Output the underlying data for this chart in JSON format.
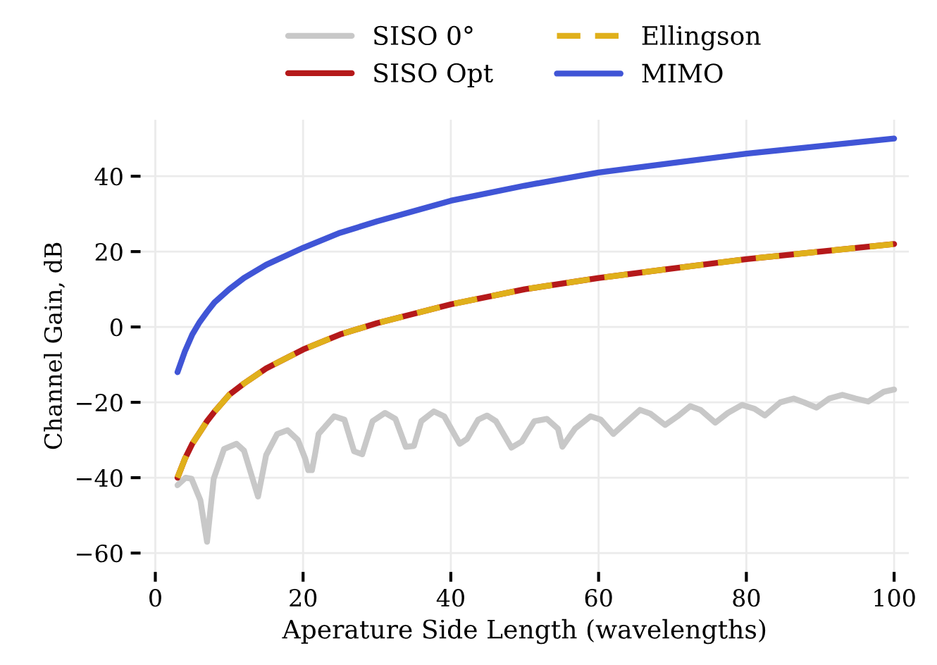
{
  "chart_data": {
    "type": "line",
    "xlabel": "Aperature Side Length (wavelengths)",
    "ylabel": "Channel Gain, dB",
    "xlim": [
      -2,
      102
    ],
    "ylim": [
      -65,
      55
    ],
    "xticks": [
      0,
      20,
      40,
      60,
      80,
      100
    ],
    "yticks": [
      -60,
      -40,
      -20,
      0,
      20,
      40
    ],
    "grid": true,
    "legend": "top",
    "marker": "none",
    "series": [
      {
        "name": "SISO 0°",
        "color": "#c8c8c8",
        "line_style": "solid",
        "x": [
          3,
          4.1,
          4.9,
          6.1,
          7,
          7.9,
          9.3,
          11,
          12,
          13.9,
          15,
          16.5,
          17.9,
          19.3,
          20.3,
          20.7,
          21.2,
          21.6,
          22.1,
          24.2,
          25.6,
          26.9,
          28,
          29.4,
          31.1,
          32.5,
          33.9,
          35,
          36,
          37.7,
          39.1,
          41.2,
          42.2,
          43.7,
          44.9,
          46.1,
          48.2,
          49.6,
          51.3,
          53,
          54.5,
          55.1,
          56.8,
          58.9,
          60.3,
          62,
          63.5,
          65.6,
          67,
          69,
          70.7,
          72.4,
          73.8,
          75.8,
          77.5,
          79.4,
          81.1,
          82.5,
          84.6,
          86.4,
          87.8,
          89.5,
          91.2,
          93,
          94.8,
          96.5,
          98.6,
          100
        ],
        "values": [
          -42,
          -40,
          -40.3,
          -46,
          -57,
          -40.3,
          -32.4,
          -31,
          -32.8,
          -45,
          -34,
          -28.4,
          -27.4,
          -30,
          -35,
          -38,
          -38,
          -34,
          -28.4,
          -23.7,
          -24.6,
          -33,
          -33.8,
          -25,
          -22.8,
          -24.4,
          -31.8,
          -31.6,
          -25,
          -22.4,
          -23.7,
          -31,
          -29.7,
          -24.6,
          -23.5,
          -25,
          -32,
          -30.4,
          -25,
          -24.4,
          -27,
          -31.8,
          -27,
          -23.7,
          -24.6,
          -28.4,
          -25.7,
          -22,
          -23,
          -26,
          -23.7,
          -21,
          -22,
          -25.4,
          -22.8,
          -20.7,
          -21.7,
          -23.5,
          -20,
          -19,
          -20,
          -21.4,
          -19,
          -18,
          -19,
          -19.8,
          -17.2,
          -16.6
        ]
      },
      {
        "name": "SISO Opt",
        "color": "#b5191a",
        "line_style": "solid",
        "x": [
          3,
          4,
          5,
          6,
          7,
          8,
          10,
          12,
          15,
          20,
          25,
          30,
          40,
          50,
          60,
          70,
          80,
          90,
          100
        ],
        "values": [
          -40,
          -35,
          -31,
          -28,
          -25,
          -22.5,
          -18,
          -15,
          -11,
          -6,
          -2,
          1,
          6,
          10,
          13,
          15.5,
          18,
          20,
          22
        ]
      },
      {
        "name": "Ellingson",
        "color": "#e0b01b",
        "line_style": "dashed",
        "x": [
          3,
          4,
          5,
          6,
          7,
          8,
          10,
          12,
          15,
          20,
          25,
          30,
          40,
          50,
          60,
          70,
          80,
          90,
          100
        ],
        "values": [
          -40,
          -35,
          -31,
          -28,
          -25,
          -22.5,
          -18,
          -15,
          -11,
          -6,
          -2,
          1,
          6,
          10,
          13,
          15.5,
          18,
          20,
          22
        ]
      },
      {
        "name": "MIMO",
        "color": "#4055d6",
        "line_style": "solid",
        "x": [
          3,
          4,
          5,
          6,
          7,
          8,
          10,
          12,
          15,
          20,
          25,
          30,
          40,
          50,
          60,
          70,
          80,
          90,
          100
        ],
        "values": [
          -12,
          -6.5,
          -2,
          1.3,
          4,
          6.5,
          10,
          13,
          16.5,
          21,
          25,
          28,
          33.5,
          37.5,
          41,
          43.5,
          46,
          48,
          50
        ]
      }
    ]
  }
}
